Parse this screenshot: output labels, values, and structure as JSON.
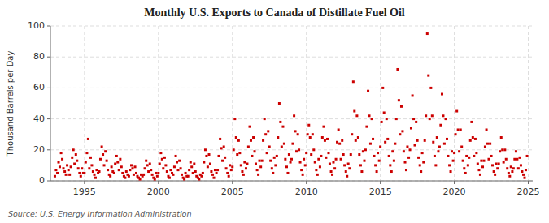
{
  "chart_data": {
    "type": "scatter",
    "title": "Monthly U.S. Exports to Canada of Distillate Fuel Oil",
    "ylabel": "Thousand Barrels per Day",
    "annotations": [
      "Source: U.S. Energy Information Administration"
    ],
    "color": "#cc0000",
    "marker": "square",
    "grid": true,
    "xlim": [
      1992.7,
      2025.3
    ],
    "ylim": [
      0,
      100
    ],
    "xticks": [
      1995,
      2000,
      2005,
      2010,
      2015,
      2020,
      2025
    ],
    "yticks": [
      0,
      20,
      40,
      60,
      80,
      100
    ],
    "x": [
      1993.0,
      1993.08,
      1993.17,
      1993.25,
      1993.33,
      1993.42,
      1993.5,
      1993.58,
      1993.67,
      1993.75,
      1993.83,
      1993.92,
      1994.0,
      1994.08,
      1994.17,
      1994.25,
      1994.33,
      1994.42,
      1994.5,
      1994.58,
      1994.67,
      1994.75,
      1994.83,
      1994.92,
      1995.0,
      1995.08,
      1995.17,
      1995.25,
      1995.33,
      1995.42,
      1995.5,
      1995.58,
      1995.67,
      1995.75,
      1995.83,
      1995.92,
      1996.0,
      1996.08,
      1996.17,
      1996.25,
      1996.33,
      1996.42,
      1996.5,
      1996.58,
      1996.67,
      1996.75,
      1996.83,
      1996.92,
      1997.0,
      1997.08,
      1997.17,
      1997.25,
      1997.33,
      1997.42,
      1997.5,
      1997.58,
      1997.67,
      1997.75,
      1997.83,
      1997.92,
      1998.0,
      1998.08,
      1998.17,
      1998.25,
      1998.33,
      1998.42,
      1998.5,
      1998.58,
      1998.67,
      1998.75,
      1998.83,
      1998.92,
      1999.0,
      1999.08,
      1999.17,
      1999.25,
      1999.33,
      1999.42,
      1999.5,
      1999.58,
      1999.67,
      1999.75,
      1999.83,
      1999.92,
      2000.0,
      2000.08,
      2000.17,
      2000.25,
      2000.33,
      2000.42,
      2000.5,
      2000.58,
      2000.67,
      2000.75,
      2000.83,
      2000.92,
      2001.0,
      2001.08,
      2001.17,
      2001.25,
      2001.33,
      2001.42,
      2001.5,
      2001.58,
      2001.67,
      2001.75,
      2001.83,
      2001.92,
      2002.0,
      2002.08,
      2002.17,
      2002.25,
      2002.33,
      2002.42,
      2002.5,
      2002.58,
      2002.67,
      2002.75,
      2002.83,
      2002.92,
      2003.0,
      2003.08,
      2003.17,
      2003.25,
      2003.33,
      2003.42,
      2003.5,
      2003.58,
      2003.67,
      2003.75,
      2003.83,
      2003.92,
      2004.0,
      2004.08,
      2004.17,
      2004.25,
      2004.33,
      2004.42,
      2004.5,
      2004.58,
      2004.67,
      2004.75,
      2004.83,
      2004.92,
      2005.0,
      2005.08,
      2005.17,
      2005.25,
      2005.33,
      2005.42,
      2005.5,
      2005.58,
      2005.67,
      2005.75,
      2005.83,
      2005.92,
      2006.0,
      2006.08,
      2006.17,
      2006.25,
      2006.33,
      2006.42,
      2006.5,
      2006.58,
      2006.67,
      2006.75,
      2006.83,
      2006.92,
      2007.0,
      2007.08,
      2007.17,
      2007.25,
      2007.33,
      2007.42,
      2007.5,
      2007.58,
      2007.67,
      2007.75,
      2007.83,
      2007.92,
      2008.0,
      2008.08,
      2008.17,
      2008.25,
      2008.33,
      2008.42,
      2008.5,
      2008.58,
      2008.67,
      2008.75,
      2008.83,
      2008.92,
      2009.0,
      2009.08,
      2009.17,
      2009.25,
      2009.33,
      2009.42,
      2009.5,
      2009.58,
      2009.67,
      2009.75,
      2009.83,
      2009.92,
      2010.0,
      2010.08,
      2010.17,
      2010.25,
      2010.33,
      2010.42,
      2010.5,
      2010.58,
      2010.67,
      2010.75,
      2010.83,
      2010.92,
      2011.0,
      2011.08,
      2011.17,
      2011.25,
      2011.33,
      2011.42,
      2011.5,
      2011.58,
      2011.67,
      2011.75,
      2011.83,
      2011.92,
      2012.0,
      2012.08,
      2012.17,
      2012.25,
      2012.33,
      2012.42,
      2012.5,
      2012.58,
      2012.67,
      2012.75,
      2012.83,
      2012.92,
      2013.0,
      2013.08,
      2013.17,
      2013.25,
      2013.33,
      2013.42,
      2013.5,
      2013.58,
      2013.67,
      2013.75,
      2013.83,
      2013.92,
      2014.0,
      2014.08,
      2014.17,
      2014.25,
      2014.33,
      2014.42,
      2014.5,
      2014.58,
      2014.67,
      2014.75,
      2014.83,
      2014.92,
      2015.0,
      2015.08,
      2015.17,
      2015.25,
      2015.33,
      2015.42,
      2015.5,
      2015.58,
      2015.67,
      2015.75,
      2015.83,
      2015.92,
      2016.0,
      2016.08,
      2016.17,
      2016.25,
      2016.33,
      2016.42,
      2016.5,
      2016.58,
      2016.67,
      2016.75,
      2016.83,
      2016.92,
      2017.0,
      2017.08,
      2017.17,
      2017.25,
      2017.33,
      2017.42,
      2017.5,
      2017.58,
      2017.67,
      2017.75,
      2017.83,
      2017.92,
      2018.0,
      2018.08,
      2018.17,
      2018.25,
      2018.33,
      2018.42,
      2018.5,
      2018.58,
      2018.67,
      2018.75,
      2018.83,
      2018.92,
      2019.0,
      2019.08,
      2019.17,
      2019.25,
      2019.33,
      2019.42,
      2019.5,
      2019.58,
      2019.67,
      2019.75,
      2019.83,
      2019.92,
      2020.0,
      2020.08,
      2020.17,
      2020.25,
      2020.33,
      2020.42,
      2020.5,
      2020.58,
      2020.67,
      2020.75,
      2020.83,
      2020.92,
      2021.0,
      2021.08,
      2021.17,
      2021.25,
      2021.33,
      2021.42,
      2021.5,
      2021.58,
      2021.67,
      2021.75,
      2021.83,
      2021.92,
      2022.0,
      2022.08,
      2022.17,
      2022.25,
      2022.33,
      2022.42,
      2022.5,
      2022.58,
      2022.67,
      2022.75,
      2022.83,
      2022.92,
      2023.0,
      2023.08,
      2023.17,
      2023.25,
      2023.33,
      2023.42,
      2023.5,
      2023.58,
      2023.67,
      2023.75,
      2023.83,
      2023.92,
      2024.0,
      2024.08,
      2024.17,
      2024.25,
      2024.33,
      2024.42,
      2024.5,
      2024.58,
      2024.67,
      2024.75,
      2024.83,
      2024.92
    ],
    "values": [
      3,
      7,
      5,
      12,
      9,
      18,
      14,
      8,
      6,
      4,
      10,
      7,
      4,
      9,
      15,
      20,
      11,
      17,
      13,
      8,
      5,
      3,
      8,
      5,
      5,
      12,
      18,
      27,
      8,
      15,
      10,
      6,
      4,
      2,
      7,
      5,
      6,
      14,
      22,
      17,
      10,
      19,
      13,
      7,
      4,
      3,
      9,
      6,
      5,
      11,
      16,
      12,
      7,
      14,
      9,
      5,
      3,
      2,
      6,
      4,
      3,
      7,
      10,
      8,
      4,
      9,
      5,
      3,
      2,
      1,
      4,
      3,
      4,
      8,
      13,
      10,
      6,
      11,
      7,
      4,
      2,
      1,
      5,
      3,
      5,
      11,
      18,
      14,
      8,
      15,
      10,
      6,
      3,
      2,
      7,
      5,
      4,
      9,
      16,
      12,
      7,
      13,
      8,
      4,
      2,
      1,
      5,
      3,
      3,
      7,
      12,
      9,
      5,
      11,
      6,
      3,
      2,
      1,
      4,
      3,
      5,
      12,
      20,
      16,
      9,
      17,
      11,
      6,
      4,
      2,
      7,
      5,
      7,
      16,
      27,
      21,
      13,
      22,
      15,
      8,
      5,
      3,
      10,
      7,
      9,
      20,
      40,
      28,
      17,
      26,
      18,
      10,
      6,
      4,
      12,
      8,
      11,
      22,
      35,
      26,
      16,
      28,
      19,
      11,
      7,
      4,
      13,
      9,
      13,
      26,
      40,
      30,
      18,
      32,
      22,
      13,
      8,
      5,
      15,
      10,
      16,
      28,
      50,
      38,
      22,
      35,
      24,
      14,
      9,
      5,
      17,
      12,
      14,
      24,
      42,
      32,
      19,
      30,
      20,
      12,
      7,
      4,
      14,
      10,
      18,
      30,
      36,
      28,
      17,
      30,
      20,
      12,
      7,
      4,
      14,
      9,
      16,
      28,
      35,
      26,
      15,
      27,
      18,
      11,
      6,
      4,
      12,
      8,
      14,
      25,
      33,
      24,
      14,
      26,
      17,
      10,
      6,
      3,
      11,
      8,
      17,
      30,
      64,
      45,
      26,
      42,
      28,
      17,
      10,
      6,
      19,
      13,
      20,
      35,
      58,
      42,
      24,
      40,
      27,
      16,
      10,
      6,
      18,
      13,
      22,
      38,
      60,
      44,
      25,
      40,
      27,
      16,
      10,
      6,
      19,
      13,
      24,
      40,
      72,
      52,
      30,
      48,
      32,
      19,
      12,
      7,
      22,
      15,
      20,
      34,
      55,
      40,
      23,
      38,
      26,
      15,
      10,
      6,
      18,
      12,
      26,
      42,
      95,
      68,
      40,
      60,
      42,
      25,
      16,
      10,
      28,
      19,
      22,
      36,
      56,
      42,
      24,
      40,
      27,
      16,
      10,
      6,
      19,
      13,
      18,
      30,
      45,
      33,
      19,
      33,
      22,
      13,
      8,
      5,
      16,
      10,
      15,
      26,
      38,
      28,
      16,
      27,
      18,
      11,
      7,
      4,
      13,
      9,
      13,
      22,
      33,
      24,
      14,
      24,
      16,
      10,
      6,
      4,
      11,
      8,
      11,
      19,
      28,
      20,
      12,
      20,
      14,
      8,
      5,
      3,
      9,
      6,
      8,
      14,
      19,
      14,
      8,
      15,
      10,
      6,
      4,
      2,
      7,
      16
    ]
  }
}
